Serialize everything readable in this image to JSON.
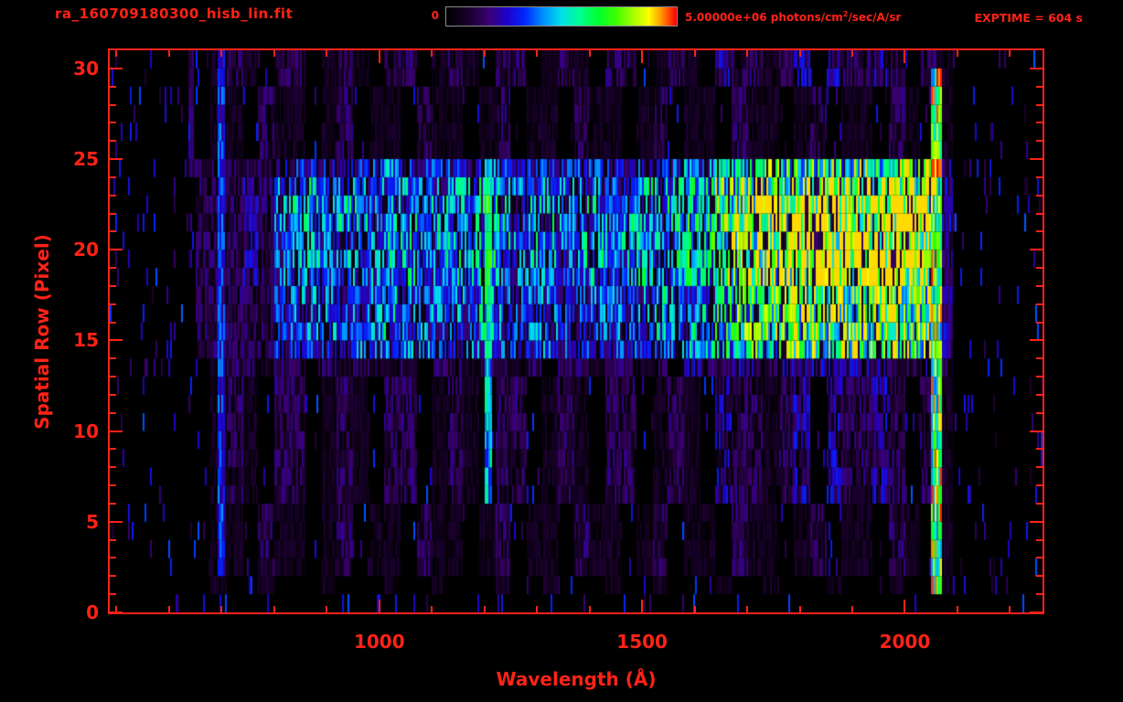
{
  "window": {
    "bg": "#000000",
    "accent": "#ff2217"
  },
  "header": {
    "filename": "ra_160709180300_hisb_lin.fit",
    "colorbar_min": "0",
    "colorbar_max_prefix": "5.00000e+06 photons/cm",
    "colorbar_max_sup": "2",
    "colorbar_max_suffix": "/sec/A/sr",
    "exptime": "EXPTIME = 604 s"
  },
  "chart_data": {
    "type": "heatmap",
    "title": "ra_160709180300_hisb_lin.fit",
    "xlabel": "Wavelength (Å)",
    "ylabel": "Spatial Row (Pixel)",
    "x_range": [
      487,
      2262
    ],
    "y_range": [
      0,
      31
    ],
    "x_ticks": [
      1000,
      1500,
      2000
    ],
    "x_minor_step": 100,
    "y_ticks": [
      0,
      5,
      10,
      15,
      20,
      25,
      30
    ],
    "y_minor_step": 1,
    "exptime_s": 604,
    "colorbar": {
      "min": 0,
      "max": 5000000,
      "min_label": "0",
      "max_label": "5.00000e+06",
      "units": "photons/cm2/sec/A/sr",
      "stops": [
        [
          0.0,
          "#000000"
        ],
        [
          0.1,
          "#1c0030"
        ],
        [
          0.18,
          "#3a006e"
        ],
        [
          0.26,
          "#2000c8"
        ],
        [
          0.34,
          "#0028ff"
        ],
        [
          0.42,
          "#0090ff"
        ],
        [
          0.5,
          "#00e0e8"
        ],
        [
          0.58,
          "#00ff90"
        ],
        [
          0.66,
          "#00ff30"
        ],
        [
          0.74,
          "#40ff00"
        ],
        [
          0.82,
          "#b0ff00"
        ],
        [
          0.88,
          "#ffff00"
        ],
        [
          0.93,
          "#ffa000"
        ],
        [
          1.0,
          "#ff0000"
        ]
      ]
    },
    "grid": {
      "comment": "coarse intensity map, hex digit 0-f = 0 to 5e6 photons/cm2/sec/A/sr, 48 bins of 30 A starting at 650 A, rows listed bottom (spatial row 0) to top (row 30)",
      "lambda_start": 650,
      "lambda_step": 30,
      "hex_full_scale": 15,
      "rows_bottom_to_top": [
        "000000000000000000000000000000000000000000000000",
        "010010001000100100010010001001000100100010001001",
        "011021101201102110120110211012011021101201102101",
        "011021101201102110120110211012011021101201102101",
        "011021101201102110120110211012011021101201102101",
        "011021101201102110120110211012011021101201102101",
        "012102201210220121022012102201210322123032232021",
        "012102201210220121022012102201210322123032232021",
        "012102201210220121022012102201210322123032232021",
        "012102201210220121022012102201210322123032232021",
        "012102201210220121022012102201210322123032232021",
        "012102201210220121022012102201210322123032232021",
        "012102201210220121022012102201210322123032232021",
        "012212202122120221221202212212032233233343332202",
        "22222444445555555555445444545556677889999aaaaaa3",
        "22222455545565555565455445545656678899aaaaabbba3",
        "22222455545565555565455445545656678899aaaaabbba3",
        "22222455545565555565455445545656678899aaaaabbba3",
        "22232556555656556666556556556667799abbcccccdddc3",
        "222325665665665666765665665666777abcccdeeeefffe3",
        "222325665665665666765665665666777abcccdeeeefffe3",
        "222325665665665666765665665666777abcccdeeeefffe3",
        "222325665665665666765665665666777abcccdeeeefffe3",
        "22232556555656556666556556556667799abbcccccdddc3",
        "2222234443445444445434444443445556778889999aaa93",
        "011021101201102110120110211012011021101201102101",
        "011021101201102110120110211012011021101201102101",
        "011021101201102110120110211012011021101201102101",
        "011021101201102110120110211012011021101201102101",
        "012102201210220121022012102201210322123032232021",
        "012102201210220121022012102201210322123032232021"
      ]
    },
    "features": {
      "lyman_alpha_line": {
        "lambda": [
          1199,
          1215
        ],
        "rows": [
          6,
          24
        ],
        "intensity": 0.5
      },
      "lyman_alpha_core": {
        "lambda": [
          1200,
          1212
        ],
        "rows": [
          14,
          23
        ],
        "intensity": 0.62
      },
      "left_faint_line": {
        "lambda": [
          694,
          706
        ],
        "rows": [
          2,
          30
        ],
        "intensity": 0.33
      },
      "far_left_line": {
        "lambda": [
          638,
          648
        ],
        "rows": [
          24,
          30
        ],
        "intensity": 0.18
      },
      "right_edge_column": {
        "lambda": [
          2048,
          2072
        ],
        "rows": [
          1,
          29
        ],
        "intensity": 0.7,
        "hot_speck_fraction": 0.18
      },
      "sparse_outer_speck_rate": 0.008
    }
  }
}
